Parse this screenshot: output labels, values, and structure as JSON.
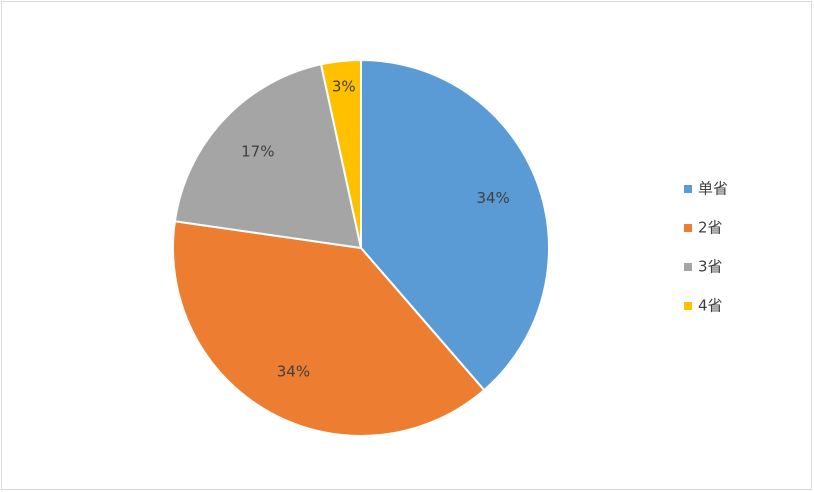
{
  "chart_data": {
    "type": "pie",
    "categories": [
      "单省",
      "2省",
      "3省",
      "4省"
    ],
    "values": [
      34,
      34,
      17,
      3
    ],
    "value_labels": [
      "34%",
      "34%",
      "17%",
      "3%"
    ],
    "colors": [
      "#5b9bd5",
      "#ed7d31",
      "#a5a5a5",
      "#ffc000"
    ],
    "legend": "right"
  }
}
